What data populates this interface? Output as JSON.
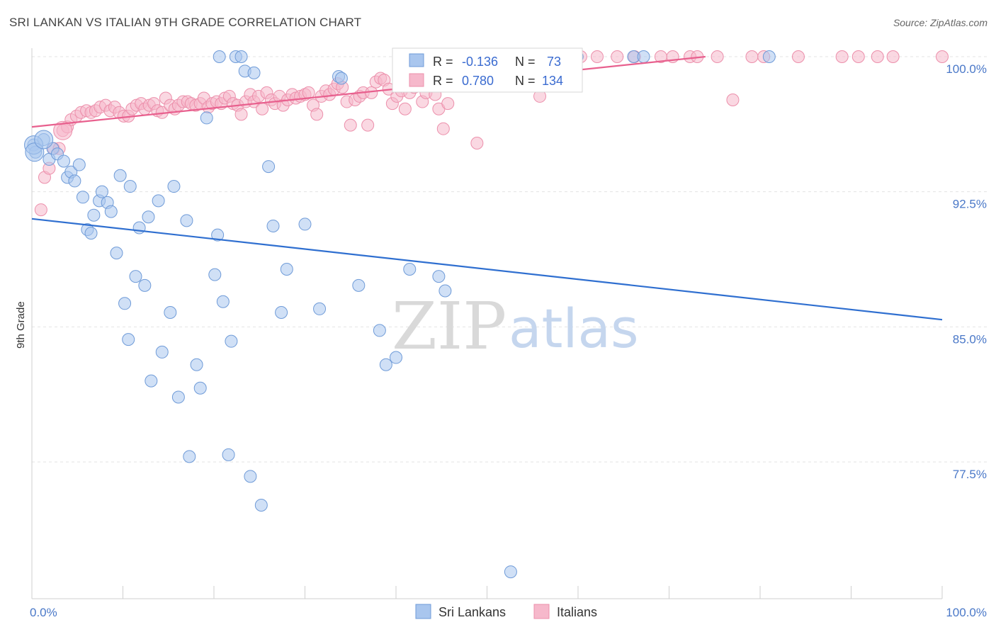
{
  "title": "SRI LANKAN VS ITALIAN 9TH GRADE CORRELATION CHART",
  "source": "Source: ZipAtlas.com",
  "watermark": {
    "part1": "ZIP",
    "part2": "atlas"
  },
  "chart_data": {
    "type": "scatter",
    "title": "SRI LANKAN VS ITALIAN 9TH GRADE CORRELATION CHART",
    "xlabel": "",
    "ylabel": "9th Grade",
    "xlim": [
      0,
      100
    ],
    "ylim": [
      70.9,
      101.0
    ],
    "x_tick_labels": [
      "0.0%",
      "100.0%"
    ],
    "y_ticks": [
      77.5,
      85.0,
      92.5,
      100.0
    ],
    "y_tick_labels": [
      "77.5%",
      "85.0%",
      "92.5%",
      "100.0%"
    ],
    "legend": {
      "r_label": "R =",
      "n_label": "N =",
      "rows": [
        {
          "r": "-0.136",
          "n": "73"
        },
        {
          "r": "0.780",
          "n": "134"
        }
      ]
    },
    "series": [
      {
        "name": "Sri Lankans",
        "color": "#a9c6ee",
        "stroke": "#6f9bd8",
        "line_color": "#2f6fd0",
        "trend": {
          "x": [
            0,
            100
          ],
          "y": [
            91.0,
            85.4
          ]
        },
        "points": [
          [
            0.2,
            95.1
          ],
          [
            0.4,
            94.7
          ],
          [
            1.3,
            95.4
          ],
          [
            1.9,
            94.3
          ],
          [
            2.3,
            94.9
          ],
          [
            2.8,
            94.6
          ],
          [
            3.5,
            94.2
          ],
          [
            3.9,
            93.3
          ],
          [
            4.3,
            93.6
          ],
          [
            4.7,
            93.1
          ],
          [
            5.2,
            94.0
          ],
          [
            5.6,
            92.2
          ],
          [
            6.1,
            90.4
          ],
          [
            6.5,
            90.2
          ],
          [
            6.8,
            91.2
          ],
          [
            7.4,
            92.0
          ],
          [
            7.7,
            92.5
          ],
          [
            8.3,
            91.9
          ],
          [
            8.7,
            91.4
          ],
          [
            9.3,
            89.1
          ],
          [
            9.7,
            93.4
          ],
          [
            10.2,
            86.3
          ],
          [
            10.6,
            84.3
          ],
          [
            10.8,
            92.8
          ],
          [
            11.4,
            87.8
          ],
          [
            11.8,
            90.5
          ],
          [
            12.4,
            87.3
          ],
          [
            12.8,
            91.1
          ],
          [
            13.1,
            82.0
          ],
          [
            13.9,
            92.0
          ],
          [
            14.3,
            83.6
          ],
          [
            15.2,
            85.8
          ],
          [
            15.6,
            92.8
          ],
          [
            16.1,
            81.1
          ],
          [
            17.0,
            90.9
          ],
          [
            17.3,
            77.8
          ],
          [
            18.1,
            82.9
          ],
          [
            18.5,
            81.6
          ],
          [
            19.2,
            96.6
          ],
          [
            20.1,
            87.9
          ],
          [
            20.4,
            90.1
          ],
          [
            20.6,
            100.0
          ],
          [
            21.0,
            86.4
          ],
          [
            21.6,
            77.9
          ],
          [
            21.9,
            84.2
          ],
          [
            22.4,
            100.0
          ],
          [
            23.0,
            100.0
          ],
          [
            23.4,
            99.2
          ],
          [
            24.0,
            76.7
          ],
          [
            24.4,
            99.1
          ],
          [
            25.2,
            75.1
          ],
          [
            26.0,
            93.9
          ],
          [
            26.5,
            90.6
          ],
          [
            27.4,
            85.8
          ],
          [
            28.0,
            88.2
          ],
          [
            30.0,
            90.7
          ],
          [
            31.6,
            86.0
          ],
          [
            33.7,
            98.9
          ],
          [
            34.0,
            98.8
          ],
          [
            35.9,
            87.3
          ],
          [
            38.2,
            84.8
          ],
          [
            38.9,
            82.9
          ],
          [
            40.0,
            83.3
          ],
          [
            41.5,
            88.2
          ],
          [
            44.7,
            87.8
          ],
          [
            45.4,
            87.0
          ],
          [
            46.2,
            99.9
          ],
          [
            49.0,
            99.9
          ],
          [
            52.6,
            71.4
          ],
          [
            59.9,
            100.0
          ],
          [
            66.1,
            100.0
          ],
          [
            67.2,
            100.0
          ],
          [
            81.0,
            100.0
          ]
        ],
        "large_points": [
          [
            0.2,
            95.1
          ],
          [
            0.3,
            94.7
          ],
          [
            1.3,
            95.4
          ]
        ]
      },
      {
        "name": "Italians",
        "color": "#f6b8cb",
        "stroke": "#ec8fab",
        "line_color": "#e8608e",
        "trend": {
          "x": [
            0,
            74
          ],
          "y": [
            96.1,
            100.0
          ]
        },
        "points": [
          [
            1.0,
            91.5
          ],
          [
            1.4,
            93.3
          ],
          [
            1.9,
            93.8
          ],
          [
            2.4,
            94.9
          ],
          [
            3.0,
            94.9
          ],
          [
            3.4,
            95.9
          ],
          [
            3.9,
            96.1
          ],
          [
            4.3,
            96.5
          ],
          [
            4.9,
            96.7
          ],
          [
            5.4,
            96.9
          ],
          [
            6.0,
            97.0
          ],
          [
            6.5,
            96.9
          ],
          [
            7.0,
            97.0
          ],
          [
            7.5,
            97.2
          ],
          [
            8.1,
            97.3
          ],
          [
            8.6,
            97.0
          ],
          [
            9.1,
            97.2
          ],
          [
            9.6,
            96.9
          ],
          [
            10.1,
            96.7
          ],
          [
            10.6,
            96.7
          ],
          [
            11.0,
            97.1
          ],
          [
            11.5,
            97.3
          ],
          [
            12.0,
            97.4
          ],
          [
            12.4,
            97.1
          ],
          [
            12.9,
            97.3
          ],
          [
            13.4,
            97.4
          ],
          [
            13.8,
            97.0
          ],
          [
            14.3,
            96.9
          ],
          [
            14.7,
            97.7
          ],
          [
            15.2,
            97.3
          ],
          [
            15.7,
            97.1
          ],
          [
            16.1,
            97.3
          ],
          [
            16.6,
            97.5
          ],
          [
            17.1,
            97.5
          ],
          [
            17.5,
            97.4
          ],
          [
            18.0,
            97.3
          ],
          [
            18.5,
            97.4
          ],
          [
            18.9,
            97.7
          ],
          [
            19.4,
            97.2
          ],
          [
            19.8,
            97.4
          ],
          [
            20.3,
            97.5
          ],
          [
            20.8,
            97.4
          ],
          [
            21.2,
            97.7
          ],
          [
            21.7,
            97.8
          ],
          [
            22.1,
            97.4
          ],
          [
            22.6,
            97.3
          ],
          [
            23.0,
            96.8
          ],
          [
            23.5,
            97.5
          ],
          [
            24.0,
            97.9
          ],
          [
            24.4,
            97.5
          ],
          [
            24.9,
            97.8
          ],
          [
            25.3,
            97.1
          ],
          [
            25.8,
            98.0
          ],
          [
            26.3,
            97.6
          ],
          [
            26.7,
            97.4
          ],
          [
            27.2,
            97.8
          ],
          [
            27.6,
            97.3
          ],
          [
            28.1,
            97.6
          ],
          [
            28.6,
            97.9
          ],
          [
            29.0,
            97.7
          ],
          [
            29.5,
            97.8
          ],
          [
            30.0,
            97.9
          ],
          [
            30.4,
            98.0
          ],
          [
            30.9,
            97.3
          ],
          [
            31.3,
            96.8
          ],
          [
            31.8,
            97.8
          ],
          [
            32.3,
            98.1
          ],
          [
            32.7,
            97.9
          ],
          [
            33.2,
            98.2
          ],
          [
            33.6,
            98.5
          ],
          [
            34.1,
            98.3
          ],
          [
            34.6,
            97.5
          ],
          [
            35.0,
            96.2
          ],
          [
            35.5,
            97.6
          ],
          [
            36.0,
            97.8
          ],
          [
            36.4,
            98.0
          ],
          [
            36.9,
            96.2
          ],
          [
            37.3,
            98.0
          ],
          [
            37.8,
            98.6
          ],
          [
            38.3,
            98.8
          ],
          [
            38.7,
            98.7
          ],
          [
            39.2,
            98.2
          ],
          [
            39.6,
            97.4
          ],
          [
            40.1,
            97.8
          ],
          [
            40.6,
            98.1
          ],
          [
            41.0,
            97.1
          ],
          [
            41.5,
            98.0
          ],
          [
            42.0,
            98.3
          ],
          [
            42.4,
            98.5
          ],
          [
            42.9,
            97.5
          ],
          [
            43.3,
            98.0
          ],
          [
            43.8,
            98.4
          ],
          [
            44.3,
            97.9
          ],
          [
            44.7,
            97.1
          ],
          [
            45.2,
            96.0
          ],
          [
            45.7,
            97.4
          ],
          [
            46.1,
            99.9
          ],
          [
            46.6,
            98.6
          ],
          [
            47.0,
            99.9
          ],
          [
            47.5,
            100.0
          ],
          [
            48.0,
            98.9
          ],
          [
            48.4,
            99.9
          ],
          [
            48.9,
            95.2
          ],
          [
            49.3,
            99.8
          ],
          [
            49.8,
            100.0
          ],
          [
            50.3,
            100.0
          ],
          [
            50.7,
            99.9
          ],
          [
            51.2,
            100.0
          ],
          [
            51.6,
            100.0
          ],
          [
            52.1,
            99.9
          ],
          [
            52.6,
            100.0
          ],
          [
            53.0,
            100.0
          ],
          [
            53.5,
            99.9
          ],
          [
            54.0,
            100.0
          ],
          [
            54.4,
            99.9
          ],
          [
            54.9,
            100.0
          ],
          [
            55.3,
            100.0
          ],
          [
            55.8,
            97.8
          ],
          [
            56.4,
            100.0
          ],
          [
            58.0,
            100.0
          ],
          [
            60.3,
            100.0
          ],
          [
            62.1,
            100.0
          ],
          [
            64.3,
            100.0
          ],
          [
            66.2,
            100.0
          ],
          [
            69.1,
            100.0
          ],
          [
            70.4,
            100.0
          ],
          [
            72.3,
            100.0
          ],
          [
            73.1,
            100.0
          ],
          [
            75.3,
            100.0
          ],
          [
            77.0,
            97.6
          ],
          [
            79.1,
            100.0
          ],
          [
            80.4,
            100.0
          ],
          [
            84.2,
            100.0
          ],
          [
            89.0,
            100.0
          ],
          [
            90.8,
            100.0
          ],
          [
            92.9,
            100.0
          ],
          [
            94.6,
            100.0
          ],
          [
            100.0,
            100.0
          ]
        ],
        "large_points": [
          [
            3.4,
            95.9
          ]
        ]
      }
    ]
  },
  "bottom_legend": [
    {
      "label": "Sri Lankans"
    },
    {
      "label": "Italians"
    }
  ]
}
